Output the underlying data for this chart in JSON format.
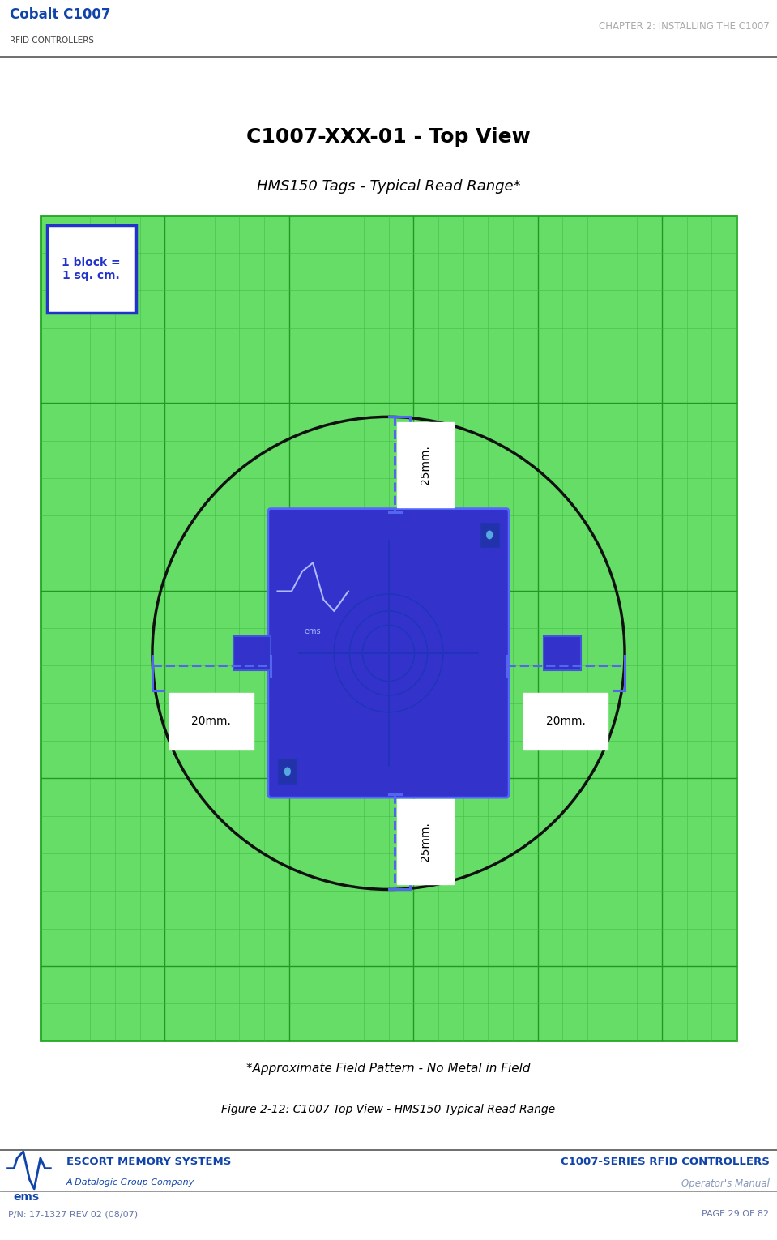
{
  "fig_width": 9.59,
  "fig_height": 15.3,
  "bg_color": "#ffffff",
  "header_left_line1": "Cobalt C1007",
  "header_left_line2": "RFID CONTROLLERS",
  "header_right": "CHAPTER 2: INSTALLING THE C1007",
  "footer_left_line1": "ESCORT MEMORY SYSTEMS",
  "footer_left_line2": "A Datalogic Group Company",
  "footer_right_line1": "C1007-SERIES RFID CONTROLLERS",
  "footer_right_line2": "Operator's Manual",
  "footer_bottom_left": "P/N: 17-1327 REV 02 (08/07)",
  "footer_bottom_right": "PAGE 29 OF 82",
  "caption": "Figure 2-12: C1007 Top View - HMS150 Typical Read Range",
  "chart_title_line1": "C1007-XXX-01 - Top View",
  "chart_title_line2": "HMS150 Tags - Typical Read Range*",
  "block_label": "1 block =\n1 sq. cm.",
  "footnote": "*Approximate Field Pattern - No Metal in Field",
  "grid_bg": "#66dd66",
  "grid_fine_color": "#55cc55",
  "grid_coarse_color": "#22aa22",
  "blue_device": "#3333cc",
  "circle_color": "#111111",
  "dim_line_color": "#5566ee",
  "n_cols": 28,
  "n_rows": 22
}
